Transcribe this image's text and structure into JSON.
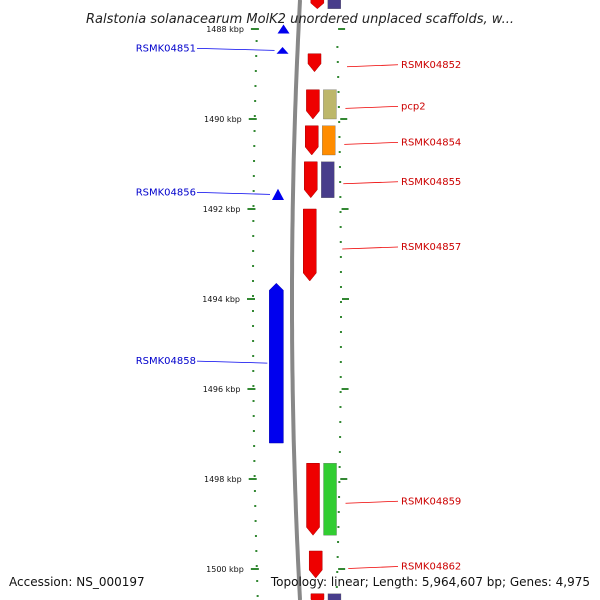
{
  "title": "Ralstonia solanacearum MolK2 unordered unplaced scaffolds, w...",
  "footer": {
    "accession": "Accession: NS_000197",
    "summary": "Topology: linear; Length: 5,964,607 bp; Genes: 4,975"
  },
  "colors": {
    "minus_strand": "#0000ee",
    "plus_strand": "#ee0000",
    "backbone": "#888888",
    "tick": "#338833",
    "tick_label": "#111111",
    "cog_khaki": "#bdb76b",
    "cog_orange": "#ff8c00",
    "cog_slate": "#483d8b",
    "cog_green": "#32cd32"
  },
  "axis": {
    "unit": "kbp",
    "ticks": [
      {
        "kbp": 1488,
        "label": "1488 kbp"
      },
      {
        "kbp": 1490,
        "label": "1490 kbp"
      },
      {
        "kbp": 1492,
        "label": "1492 kbp"
      },
      {
        "kbp": 1494,
        "label": "1494 kbp"
      },
      {
        "kbp": 1496,
        "label": "1496 kbp"
      },
      {
        "kbp": 1498,
        "label": "1498 kbp"
      },
      {
        "kbp": 1500,
        "label": "1500 kbp"
      }
    ]
  },
  "genes": [
    {
      "id": "top-minus",
      "strand": "-",
      "start": 1487.9,
      "end": 1488.1,
      "label": "",
      "cog": ""
    },
    {
      "id": "top-plus",
      "strand": "+",
      "start": 1487.3,
      "end": 1487.55,
      "label": "",
      "cog": "slate"
    },
    {
      "id": "RSMK04851",
      "strand": "-",
      "start": 1488.4,
      "end": 1488.55,
      "label": "RSMK04851",
      "cog": ""
    },
    {
      "id": "RSMK04852",
      "strand": "+",
      "start": 1488.55,
      "end": 1488.95,
      "label": "RSMK04852",
      "cog": ""
    },
    {
      "id": "pcp2",
      "strand": "+",
      "start": 1489.35,
      "end": 1490.0,
      "label": "pcp2",
      "cog": "khaki"
    },
    {
      "id": "RSMK04854",
      "strand": "+",
      "start": 1490.15,
      "end": 1490.8,
      "label": "RSMK04854",
      "cog": "orange"
    },
    {
      "id": "RSMK04855",
      "strand": "+",
      "start": 1490.95,
      "end": 1491.75,
      "label": "RSMK04855",
      "cog": "slate"
    },
    {
      "id": "RSMK04856",
      "strand": "-",
      "start": 1491.55,
      "end": 1491.8,
      "label": "RSMK04856",
      "cog": ""
    },
    {
      "id": "RSMK04857",
      "strand": "+",
      "start": 1492.0,
      "end": 1493.6,
      "label": "RSMK04857",
      "cog": ""
    },
    {
      "id": "RSMK04858",
      "strand": "-",
      "start": 1493.65,
      "end": 1497.2,
      "label": "RSMK04858",
      "cog": ""
    },
    {
      "id": "RSMK04859",
      "strand": "+",
      "start": 1497.65,
      "end": 1499.25,
      "label": "RSMK04859",
      "cog": "green"
    },
    {
      "id": "RSMK04862",
      "strand": "+",
      "start": 1499.6,
      "end": 1500.2,
      "label": "RSMK04862",
      "cog": ""
    },
    {
      "id": "bottom-plus",
      "strand": "+",
      "start": 1500.55,
      "end": 1500.8,
      "label": "",
      "cog": "slate"
    }
  ]
}
